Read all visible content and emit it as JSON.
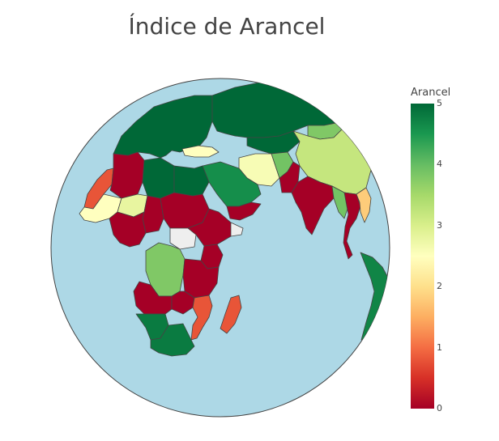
{
  "title": "Índice de Arancel",
  "colorbar": {
    "title": "Arancel",
    "min": 0,
    "max": 5,
    "ticks": [
      "0",
      "1",
      "2",
      "3",
      "4",
      "5"
    ],
    "colorscale": [
      "#a50026",
      "#d73027",
      "#f46d43",
      "#fdae61",
      "#fee08b",
      "#ffffbf",
      "#d9ef8b",
      "#a6d96a",
      "#66bd63",
      "#1a9850",
      "#006837"
    ]
  },
  "colors": {
    "ocean": "#add8e6",
    "land_no_data": "#eeeeee",
    "border": "#444444"
  },
  "chart_data": {
    "type": "choropleth",
    "projection": "orthographic",
    "title": "Índice de Arancel",
    "colorbar_title": "Arancel",
    "range": [
      0,
      5
    ],
    "regions": [
      {
        "name": "Europe",
        "value": 5
      },
      {
        "name": "Russia",
        "value": 5
      },
      {
        "name": "Kazakhstan",
        "value": 5
      },
      {
        "name": "Mongolia",
        "value": 3.8
      },
      {
        "name": "China",
        "value": 3.2
      },
      {
        "name": "Turkey",
        "value": 2.5
      },
      {
        "name": "Iran",
        "value": 2.6
      },
      {
        "name": "Afghanistan",
        "value": 3.9
      },
      {
        "name": "Pakistan",
        "value": 0
      },
      {
        "name": "India",
        "value": 0
      },
      {
        "name": "Myanmar",
        "value": 3.9
      },
      {
        "name": "Thailand",
        "value": 0
      },
      {
        "name": "Vietnam",
        "value": 1.8
      },
      {
        "name": "Indonesia",
        "value": 4.7
      },
      {
        "name": "Saudi Arabia",
        "value": 4.6
      },
      {
        "name": "Yemen",
        "value": 0
      },
      {
        "name": "Morocco",
        "value": 0.8
      },
      {
        "name": "Algeria",
        "value": 0
      },
      {
        "name": "Libya",
        "value": 5
      },
      {
        "name": "Egypt",
        "value": 5
      },
      {
        "name": "Mali",
        "value": 2.5
      },
      {
        "name": "Niger",
        "value": 2.8
      },
      {
        "name": "Chad",
        "value": 0
      },
      {
        "name": "Sudan",
        "value": 0
      },
      {
        "name": "South Sudan",
        "value": null
      },
      {
        "name": "Ethiopia",
        "value": 0
      },
      {
        "name": "Somalia",
        "value": null
      },
      {
        "name": "Nigeria",
        "value": 0
      },
      {
        "name": "DR Congo",
        "value": 3.8
      },
      {
        "name": "Kenya",
        "value": 0
      },
      {
        "name": "Tanzania",
        "value": 0
      },
      {
        "name": "Angola",
        "value": 0
      },
      {
        "name": "Zambia",
        "value": 0
      },
      {
        "name": "Mozambique",
        "value": 0.8
      },
      {
        "name": "Madagascar",
        "value": 0.8
      },
      {
        "name": "Namibia",
        "value": 4.8
      },
      {
        "name": "South Africa",
        "value": 4.8
      }
    ]
  }
}
